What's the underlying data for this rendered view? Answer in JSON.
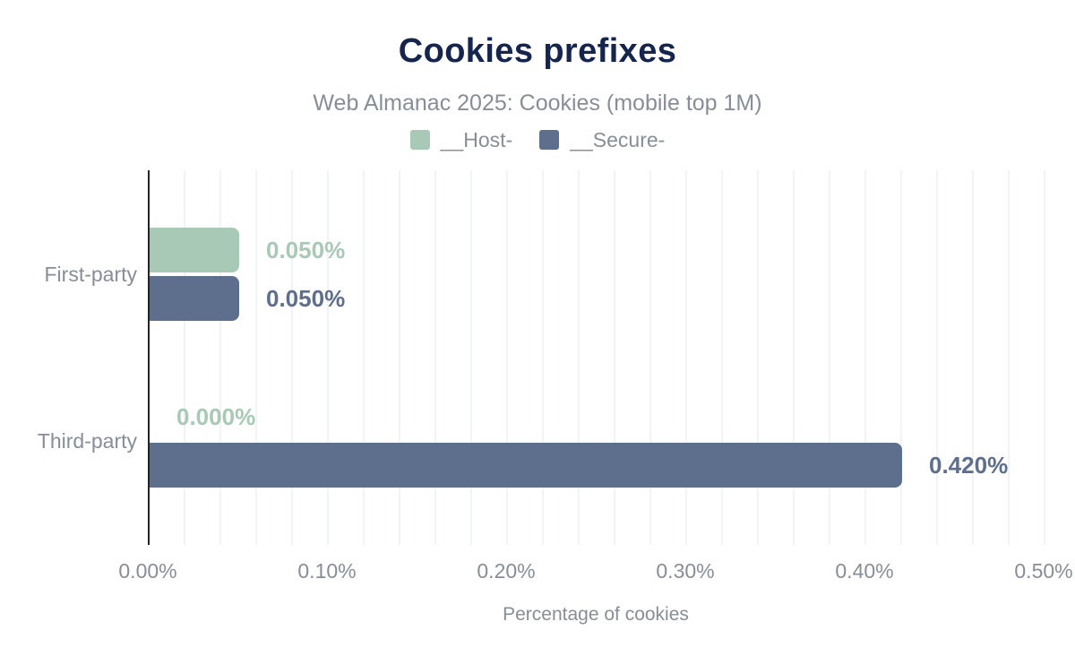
{
  "header": {
    "title": "Cookies prefixes",
    "subtitle": "Web Almanac 2025: Cookies (mobile top 1M)"
  },
  "legend": [
    {
      "label": "__Host-",
      "color": "#a7c9b6"
    },
    {
      "label": "__Secure-",
      "color": "#5e6e8d"
    }
  ],
  "chart_data": {
    "type": "bar",
    "orientation": "horizontal",
    "title": "Cookies prefixes",
    "subtitle": "Web Almanac 2025: Cookies (mobile top 1M)",
    "categories": [
      "First-party",
      "Third-party"
    ],
    "series": [
      {
        "name": "__Host-",
        "color": "#a7c9b6",
        "values": [
          0.05,
          0.0
        ],
        "labels": [
          "0.050%",
          "0.000%"
        ]
      },
      {
        "name": "__Secure-",
        "color": "#5e6e8d",
        "values": [
          0.05,
          0.42
        ],
        "labels": [
          "0.050%",
          "0.420%"
        ]
      }
    ],
    "xlabel": "Percentage of cookies",
    "ylabel": "",
    "xlim": [
      0,
      0.5
    ],
    "x_ticks": [
      "0.00%",
      "0.10%",
      "0.20%",
      "0.30%",
      "0.40%",
      "0.50%"
    ],
    "grid_step": 0.02,
    "grid": true,
    "legend_position": "top"
  },
  "colors": {
    "title": "#15254d",
    "muted_text": "#878e97",
    "axis_line": "#212529",
    "gridline": "#f1f3f5",
    "background": "#ffffff",
    "series_host": "#a7c9b6",
    "series_secure": "#5e6e8d"
  }
}
